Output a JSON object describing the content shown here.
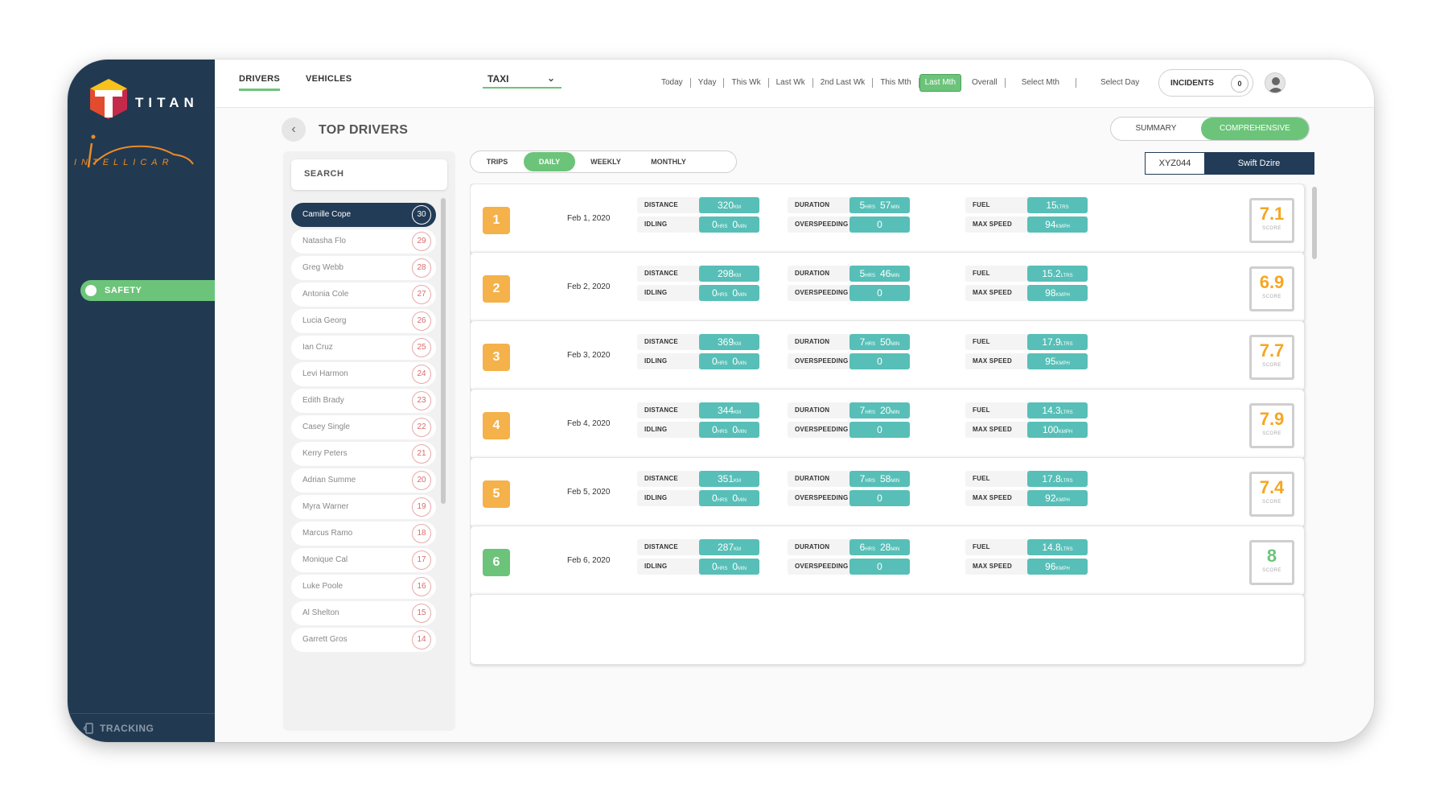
{
  "brand": {
    "name": "TITAN",
    "sub": "INTELLICAR"
  },
  "sidebar": {
    "safety_label": "SAFETY",
    "tracking_label": "TRACKING"
  },
  "topnav": {
    "tabs": [
      "DRIVERS",
      "VEHICLES"
    ],
    "fleet_select": "TAXI",
    "periods": [
      "Today",
      "Yday",
      "This Wk",
      "Last Wk",
      "2nd Last Wk",
      "This Mth",
      "Last Mth",
      "Overall",
      "Select Mth",
      "Select Day"
    ],
    "active_period": "Last Mth",
    "incidents_label": "INCIDENTS",
    "incidents_count": "0"
  },
  "header": {
    "title": "TOP DRIVERS",
    "views": [
      "SUMMARY",
      "COMPREHENSIVE"
    ],
    "active_view": "COMPREHENSIVE"
  },
  "driver_list": {
    "search_placeholder": "SEARCH",
    "drivers": [
      {
        "name": "Camille Cope",
        "num": "30"
      },
      {
        "name": "Natasha Flo",
        "num": "29"
      },
      {
        "name": "Greg Webb",
        "num": "28"
      },
      {
        "name": "Antonia Cole",
        "num": "27"
      },
      {
        "name": "Lucia Georg",
        "num": "26"
      },
      {
        "name": "Ian Cruz",
        "num": "25"
      },
      {
        "name": "Levi Harmon",
        "num": "24"
      },
      {
        "name": "Edith Brady",
        "num": "23"
      },
      {
        "name": "Casey Single",
        "num": "22"
      },
      {
        "name": "Kerry Peters",
        "num": "21"
      },
      {
        "name": "Adrian Summe",
        "num": "20"
      },
      {
        "name": "Myra Warner",
        "num": "19"
      },
      {
        "name": "Marcus Ramo",
        "num": "18"
      },
      {
        "name": "Monique Cal",
        "num": "17"
      },
      {
        "name": "Luke Poole",
        "num": "16"
      },
      {
        "name": "Al Shelton",
        "num": "15"
      },
      {
        "name": "Garrett Gros",
        "num": "14"
      }
    ]
  },
  "report_tabs": [
    "TRIPS",
    "DAILY",
    "WEEKLY",
    "MONTHLY"
  ],
  "active_report_tab": "DAILY",
  "vehicle": {
    "id": "XYZ044",
    "model": "Swift Dzire"
  },
  "labels": {
    "distance": "DISTANCE",
    "idling": "IDLING",
    "duration": "DURATION",
    "overspeeding": "OVERSPEEDING",
    "fuel": "FUEL",
    "max_speed": "MAX SPEED",
    "score": "SCORE",
    "km": "KM",
    "hrs": "HRS",
    "min": "MIN",
    "ltrs": "LTRS",
    "kmph": "KMPH"
  },
  "days": [
    {
      "rank": "1",
      "date": "Feb 1, 2020",
      "distance": "320",
      "idling_h": "0",
      "idling_m": "0",
      "duration_h": "5",
      "duration_m": "57",
      "overspeeding": "0",
      "fuel": "15",
      "max_speed": "94",
      "score": "7.1"
    },
    {
      "rank": "2",
      "date": "Feb 2, 2020",
      "distance": "298",
      "idling_h": "0",
      "idling_m": "0",
      "duration_h": "5",
      "duration_m": "46",
      "overspeeding": "0",
      "fuel": "15.2",
      "max_speed": "98",
      "score": "6.9"
    },
    {
      "rank": "3",
      "date": "Feb 3, 2020",
      "distance": "369",
      "idling_h": "0",
      "idling_m": "0",
      "duration_h": "7",
      "duration_m": "50",
      "overspeeding": "0",
      "fuel": "17.9",
      "max_speed": "95",
      "score": "7.7"
    },
    {
      "rank": "4",
      "date": "Feb 4, 2020",
      "distance": "344",
      "idling_h": "0",
      "idling_m": "0",
      "duration_h": "7",
      "duration_m": "20",
      "overspeeding": "0",
      "fuel": "14.3",
      "max_speed": "100",
      "score": "7.9"
    },
    {
      "rank": "5",
      "date": "Feb 5, 2020",
      "distance": "351",
      "idling_h": "0",
      "idling_m": "0",
      "duration_h": "7",
      "duration_m": "58",
      "overspeeding": "0",
      "fuel": "17.8",
      "max_speed": "92",
      "score": "7.4"
    },
    {
      "rank": "6",
      "date": "Feb 6, 2020",
      "distance": "287",
      "idling_h": "0",
      "idling_m": "0",
      "duration_h": "6",
      "duration_m": "28",
      "overspeeding": "0",
      "fuel": "14.8",
      "max_speed": "96",
      "score": "8"
    }
  ]
}
